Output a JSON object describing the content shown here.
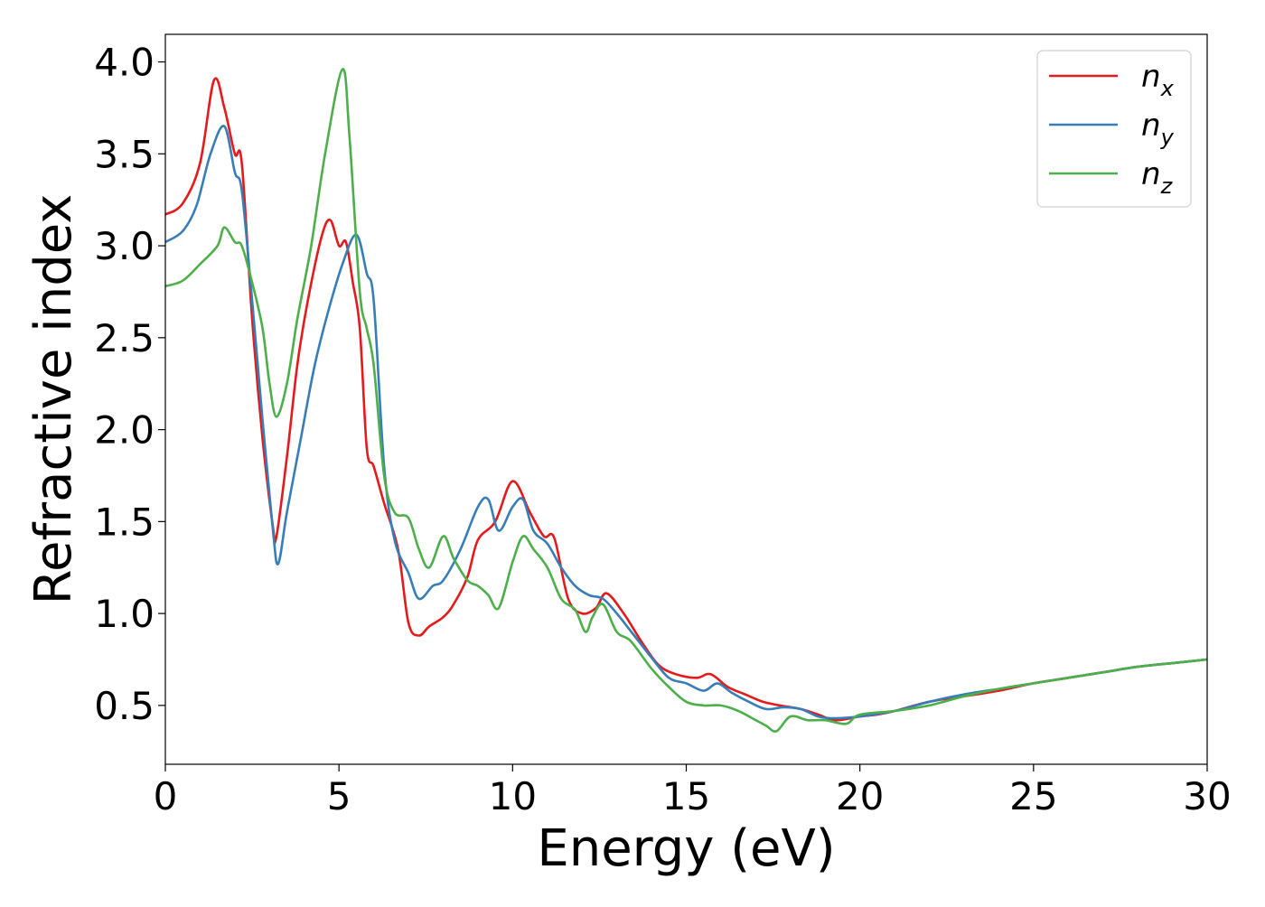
{
  "chart_data": {
    "type": "line",
    "title": "",
    "xlabel": "Energy (eV)",
    "ylabel": "Refractive index",
    "xlim": [
      0,
      30
    ],
    "ylim": [
      0.18,
      4.15
    ],
    "xticks": [
      0,
      5,
      10,
      15,
      20,
      25,
      30
    ],
    "xtick_labels": [
      "0",
      "5",
      "10",
      "15",
      "20",
      "25",
      "30"
    ],
    "yticks": [
      0.5,
      1.0,
      1.5,
      2.0,
      2.5,
      3.0,
      3.5,
      4.0
    ],
    "ytick_labels": [
      "0.5",
      "1.0",
      "1.5",
      "2.0",
      "2.5",
      "3.0",
      "3.5",
      "4.0"
    ],
    "grid": false,
    "legend_position": "top-right",
    "series": [
      {
        "name": "n_x",
        "label_base": "n",
        "label_sub": "x",
        "color": "#e41a1c",
        "x": [
          0,
          0.5,
          1.0,
          1.4,
          1.7,
          2.0,
          2.2,
          2.5,
          2.8,
          3.1,
          3.2,
          3.5,
          3.8,
          4.1,
          4.5,
          4.75,
          5.0,
          5.2,
          5.4,
          5.6,
          5.8,
          6.0,
          6.3,
          6.7,
          7.0,
          7.3,
          7.6,
          8.0,
          8.3,
          8.7,
          9.0,
          9.5,
          10.0,
          10.5,
          10.9,
          11.2,
          11.6,
          12.0,
          12.4,
          12.7,
          13.2,
          13.7,
          14.2,
          14.7,
          15.3,
          15.7,
          16.2,
          16.7,
          17.2,
          17.7,
          18.3,
          18.8,
          19.3,
          20.0,
          20.5,
          21.0,
          22.0,
          23.0,
          24.0,
          25.0,
          26.0,
          27.0,
          28.0,
          29.0,
          30.0
        ],
        "y": [
          3.17,
          3.23,
          3.45,
          3.9,
          3.75,
          3.5,
          3.45,
          2.6,
          1.95,
          1.47,
          1.42,
          1.85,
          2.35,
          2.7,
          3.05,
          3.14,
          3.0,
          3.02,
          2.8,
          2.55,
          1.9,
          1.8,
          1.6,
          1.35,
          0.95,
          0.88,
          0.93,
          0.98,
          1.05,
          1.2,
          1.4,
          1.5,
          1.72,
          1.55,
          1.42,
          1.41,
          1.08,
          1.0,
          1.03,
          1.11,
          1.0,
          0.85,
          0.72,
          0.67,
          0.65,
          0.67,
          0.6,
          0.56,
          0.52,
          0.5,
          0.48,
          0.45,
          0.42,
          0.44,
          0.45,
          0.47,
          0.52,
          0.55,
          0.58,
          0.62,
          0.65,
          0.68,
          0.71,
          0.73,
          0.75
        ]
      },
      {
        "name": "n_y",
        "label_base": "n",
        "label_sub": "y",
        "color": "#377eb8",
        "x": [
          0,
          0.5,
          0.9,
          1.3,
          1.7,
          2.0,
          2.2,
          2.5,
          2.8,
          3.1,
          3.25,
          3.5,
          3.9,
          4.3,
          4.7,
          5.1,
          5.5,
          5.8,
          6.0,
          6.3,
          6.6,
          7.0,
          7.3,
          7.7,
          8.0,
          8.5,
          9.0,
          9.3,
          9.6,
          10.0,
          10.3,
          10.6,
          11.0,
          11.4,
          11.8,
          12.2,
          12.6,
          13.0,
          13.5,
          14.0,
          14.5,
          15.0,
          15.5,
          15.9,
          16.3,
          16.8,
          17.3,
          17.8,
          18.3,
          18.8,
          19.3,
          20.0,
          21.0,
          22.0,
          23.0,
          24.0,
          25.0,
          26.0,
          27.0,
          28.0,
          29.0,
          30.0
        ],
        "y": [
          3.02,
          3.08,
          3.22,
          3.5,
          3.65,
          3.4,
          3.3,
          2.7,
          2.05,
          1.45,
          1.27,
          1.55,
          1.95,
          2.35,
          2.65,
          2.9,
          3.06,
          2.85,
          2.7,
          1.8,
          1.4,
          1.22,
          1.08,
          1.15,
          1.18,
          1.35,
          1.58,
          1.62,
          1.45,
          1.58,
          1.62,
          1.45,
          1.38,
          1.25,
          1.15,
          1.1,
          1.08,
          1.0,
          0.88,
          0.76,
          0.65,
          0.62,
          0.58,
          0.62,
          0.57,
          0.52,
          0.48,
          0.49,
          0.48,
          0.44,
          0.43,
          0.44,
          0.47,
          0.52,
          0.56,
          0.59,
          0.62,
          0.65,
          0.68,
          0.71,
          0.73,
          0.75
        ]
      },
      {
        "name": "n_z",
        "label_base": "n",
        "label_sub": "z",
        "color": "#4daf4a",
        "x": [
          0,
          0.5,
          1.0,
          1.5,
          1.7,
          2.0,
          2.2,
          2.5,
          2.8,
          3.0,
          3.2,
          3.5,
          3.8,
          4.2,
          4.6,
          5.1,
          5.3,
          5.6,
          5.8,
          6.0,
          6.3,
          6.6,
          7.0,
          7.3,
          7.6,
          8.0,
          8.3,
          8.7,
          9.0,
          9.3,
          9.6,
          10.0,
          10.3,
          10.6,
          11.0,
          11.4,
          11.8,
          12.1,
          12.3,
          12.6,
          13.0,
          13.4,
          14.0,
          14.5,
          15.0,
          15.5,
          16.0,
          16.5,
          17.0,
          17.3,
          17.6,
          18.0,
          18.5,
          19.0,
          19.6,
          20.0,
          21.0,
          22.0,
          23.0,
          24.0,
          25.0,
          26.0,
          27.0,
          28.0,
          29.0,
          30.0
        ],
        "y": [
          2.78,
          2.81,
          2.9,
          3.0,
          3.1,
          3.02,
          3.0,
          2.8,
          2.55,
          2.25,
          2.07,
          2.25,
          2.6,
          3.0,
          3.5,
          3.96,
          3.6,
          2.75,
          2.55,
          2.35,
          1.75,
          1.55,
          1.52,
          1.35,
          1.25,
          1.42,
          1.3,
          1.18,
          1.15,
          1.1,
          1.03,
          1.28,
          1.42,
          1.35,
          1.25,
          1.08,
          1.02,
          0.9,
          0.98,
          1.05,
          0.9,
          0.85,
          0.7,
          0.6,
          0.52,
          0.5,
          0.5,
          0.47,
          0.42,
          0.39,
          0.36,
          0.44,
          0.42,
          0.42,
          0.4,
          0.45,
          0.47,
          0.5,
          0.55,
          0.59,
          0.62,
          0.65,
          0.68,
          0.71,
          0.73,
          0.75
        ]
      }
    ]
  }
}
